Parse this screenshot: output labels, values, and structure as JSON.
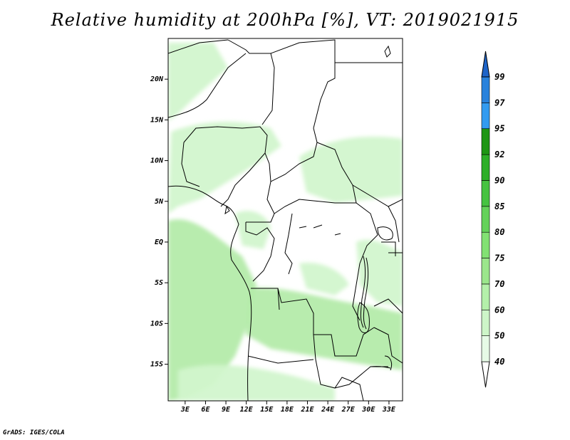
{
  "title": "Relative humidity at 200hPa [%], VT: 2019021915",
  "credit": "GrADS: IGES/COLA",
  "map": {
    "lat_ticks": [
      {
        "label": "20N",
        "value": 20
      },
      {
        "label": "15N",
        "value": 15
      },
      {
        "label": "10N",
        "value": 10
      },
      {
        "label": "5N",
        "value": 5
      },
      {
        "label": "EQ",
        "value": 0
      },
      {
        "label": "5S",
        "value": -5
      },
      {
        "label": "10S",
        "value": -10
      },
      {
        "label": "15S",
        "value": -15
      }
    ],
    "lon_ticks": [
      {
        "label": "3E",
        "value": 3
      },
      {
        "label": "6E",
        "value": 6
      },
      {
        "label": "9E",
        "value": 9
      },
      {
        "label": "12E",
        "value": 12
      },
      {
        "label": "15E",
        "value": 15
      },
      {
        "label": "18E",
        "value": 18
      },
      {
        "label": "21E",
        "value": 21
      },
      {
        "label": "24E",
        "value": 24
      },
      {
        "label": "27E",
        "value": 27
      },
      {
        "label": "30E",
        "value": 30
      },
      {
        "label": "33E",
        "value": 33
      }
    ],
    "lon_range": [
      0.5,
      35
    ],
    "lat_range": [
      -19.5,
      25
    ]
  },
  "colorbar": {
    "levels": [
      "40",
      "50",
      "60",
      "70",
      "75",
      "80",
      "85",
      "90",
      "92",
      "95",
      "97",
      "99"
    ],
    "colors": [
      "#ffffff",
      "#e6fae6",
      "#cdf5c8",
      "#b4f0aa",
      "#9be68c",
      "#82e173",
      "#64d25a",
      "#46c341",
      "#2daf28",
      "#1e9614",
      "#329bf0",
      "#2882dc",
      "#1e64c8"
    ]
  },
  "field_colors": {
    "light": "#d2f5cd",
    "mid": "#b4ebaa",
    "bg": "#ffffff"
  }
}
